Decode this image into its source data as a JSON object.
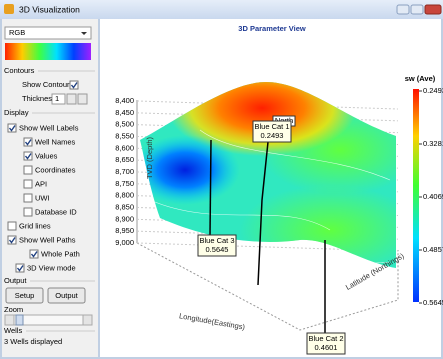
{
  "window": {
    "title": "3D Visualization"
  },
  "panel": {
    "color_map": "RGB",
    "contours": {
      "title": "Contours",
      "show_contours": {
        "label": "Show Contours",
        "checked": true
      },
      "thickness_label": "Thickness",
      "thickness_value": "1"
    },
    "display": {
      "title": "Display",
      "options": [
        {
          "label": "Show Well Labels",
          "checked": true
        },
        {
          "label": "Well Names",
          "checked": true
        },
        {
          "label": "Values",
          "checked": true
        },
        {
          "label": "Coordinates",
          "checked": false
        },
        {
          "label": "API",
          "checked": false
        },
        {
          "label": "UWI",
          "checked": false
        },
        {
          "label": "Database ID",
          "checked": false
        },
        {
          "label": "Grid lines",
          "checked": false
        },
        {
          "label": "Show Well Paths",
          "checked": true
        },
        {
          "label": "Whole Path",
          "checked": true
        },
        {
          "label": "3D View mode",
          "checked": true
        }
      ]
    },
    "output": {
      "title": "Output",
      "buttons": [
        "Setup",
        "Output"
      ]
    },
    "zoom": {
      "title": "Zoom"
    },
    "wells": {
      "title": "Wells",
      "status": "3 Wells displayed"
    }
  },
  "view": {
    "title": "3D Parameter View",
    "depth_axis": {
      "label": "TVD (Depth)",
      "ticks": [
        "8,400",
        "8,450",
        "8,500",
        "8,550",
        "8,600",
        "8,650",
        "8,700",
        "8,750",
        "8,800",
        "8,850",
        "8,900",
        "8,950",
        "9,000"
      ]
    },
    "x_axis_label": "Longitude(Eastings)",
    "y_axis_label": "Latitude (Northings)",
    "north_label": "North",
    "legend": {
      "title": "sw (Ave)",
      "ticks": [
        "0.2493",
        "0.3281",
        "0.4069",
        "0.4857",
        "0.5645"
      ]
    },
    "wells": [
      {
        "name": "Blue Cat 1",
        "value": "0.2493"
      },
      {
        "name": "Blue Cat 3",
        "value": "0.5645"
      },
      {
        "name": "Blue Cat 2",
        "value": "0.4601"
      }
    ]
  }
}
